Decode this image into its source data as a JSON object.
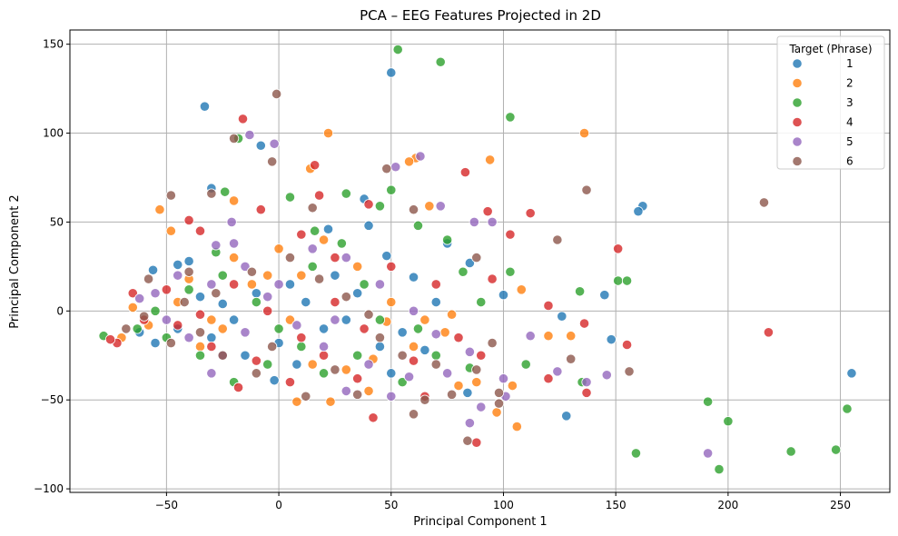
{
  "chart_data": {
    "type": "scatter",
    "title": "PCA – EEG Features Projected in 2D",
    "xlabel": "Principal Component 1",
    "ylabel": "Principal Component 2",
    "xlim": [
      -93,
      272
    ],
    "ylim": [
      -102,
      158
    ],
    "xticks": [
      -50,
      0,
      50,
      100,
      150,
      200,
      250
    ],
    "yticks": [
      -100,
      -50,
      0,
      50,
      100,
      150
    ],
    "grid": true,
    "legend": {
      "title": "Target (Phrase)",
      "position": "top-right"
    },
    "series": [
      {
        "name": "1",
        "color": "#1f77b4",
        "points": [
          [
            -33,
            115
          ],
          [
            -30,
            69
          ],
          [
            -8,
            93
          ],
          [
            50,
            134
          ],
          [
            38,
            63
          ],
          [
            22,
            46
          ],
          [
            48,
            31
          ],
          [
            40,
            48
          ],
          [
            75,
            38
          ],
          [
            85,
            27
          ],
          [
            162,
            59
          ],
          [
            160,
            56
          ],
          [
            145,
            9
          ],
          [
            148,
            -16
          ],
          [
            126,
            -3
          ],
          [
            128,
            -59
          ],
          [
            100,
            9
          ],
          [
            84,
            -46
          ],
          [
            255,
            -35
          ],
          [
            -56,
            23
          ],
          [
            -45,
            26
          ],
          [
            -40,
            28
          ],
          [
            -55,
            -18
          ],
          [
            -45,
            -10
          ],
          [
            -30,
            -15
          ],
          [
            -25,
            4
          ],
          [
            -20,
            -5
          ],
          [
            -10,
            10
          ],
          [
            0,
            -18
          ],
          [
            -2,
            -39
          ],
          [
            5,
            15
          ],
          [
            12,
            5
          ],
          [
            20,
            -10
          ],
          [
            25,
            20
          ],
          [
            30,
            -5
          ],
          [
            35,
            10
          ],
          [
            45,
            -20
          ],
          [
            50,
            -35
          ],
          [
            55,
            -12
          ],
          [
            60,
            19
          ],
          [
            65,
            -22
          ],
          [
            70,
            5
          ],
          [
            -62,
            -12
          ],
          [
            -35,
            8
          ],
          [
            -15,
            -25
          ],
          [
            8,
            -30
          ]
        ]
      },
      {
        "name": "2",
        "color": "#ff7f0e",
        "points": [
          [
            -53,
            57
          ],
          [
            -48,
            45
          ],
          [
            -20,
            62
          ],
          [
            14,
            80
          ],
          [
            22,
            100
          ],
          [
            61,
            86
          ],
          [
            58,
            84
          ],
          [
            67,
            59
          ],
          [
            94,
            85
          ],
          [
            136,
            100
          ],
          [
            108,
            12
          ],
          [
            120,
            -14
          ],
          [
            130,
            -14
          ],
          [
            104,
            -42
          ],
          [
            106,
            -65
          ],
          [
            97,
            -57
          ],
          [
            77,
            -2
          ],
          [
            74,
            -12
          ],
          [
            80,
            -42
          ],
          [
            60,
            -20
          ],
          [
            48,
            -6
          ],
          [
            42,
            -27
          ],
          [
            30,
            -33
          ],
          [
            23,
            -51
          ],
          [
            8,
            -51
          ],
          [
            15,
            -30
          ],
          [
            5,
            -5
          ],
          [
            -5,
            20
          ],
          [
            -12,
            15
          ],
          [
            -25,
            -10
          ],
          [
            -35,
            -20
          ],
          [
            -45,
            5
          ],
          [
            -58,
            -8
          ],
          [
            -65,
            2
          ],
          [
            -70,
            -15
          ],
          [
            -40,
            18
          ],
          [
            -20,
            30
          ],
          [
            0,
            35
          ],
          [
            20,
            40
          ],
          [
            35,
            25
          ],
          [
            50,
            5
          ],
          [
            65,
            -5
          ],
          [
            88,
            -40
          ],
          [
            40,
            -45
          ],
          [
            10,
            20
          ],
          [
            -30,
            -5
          ]
        ]
      },
      {
        "name": "3",
        "color": "#2ca02c",
        "points": [
          [
            53,
            147
          ],
          [
            72,
            140
          ],
          [
            103,
            109
          ],
          [
            -18,
            97
          ],
          [
            -24,
            67
          ],
          [
            -28,
            33
          ],
          [
            5,
            64
          ],
          [
            16,
            45
          ],
          [
            30,
            66
          ],
          [
            45,
            59
          ],
          [
            50,
            68
          ],
          [
            62,
            48
          ],
          [
            75,
            40
          ],
          [
            82,
            22
          ],
          [
            90,
            5
          ],
          [
            103,
            22
          ],
          [
            134,
            11
          ],
          [
            151,
            17
          ],
          [
            155,
            17
          ],
          [
            191,
            -51
          ],
          [
            200,
            -62
          ],
          [
            159,
            -80
          ],
          [
            196,
            -89
          ],
          [
            228,
            -79
          ],
          [
            248,
            -78
          ],
          [
            253,
            -55
          ],
          [
            135,
            -40
          ],
          [
            110,
            -30
          ],
          [
            85,
            -32
          ],
          [
            70,
            -25
          ],
          [
            55,
            -40
          ],
          [
            62,
            -10
          ],
          [
            45,
            -5
          ],
          [
            35,
            -25
          ],
          [
            20,
            -35
          ],
          [
            10,
            -20
          ],
          [
            -5,
            -30
          ],
          [
            -20,
            -40
          ],
          [
            -35,
            -25
          ],
          [
            -50,
            -15
          ],
          [
            -63,
            -10
          ],
          [
            -78,
            -14
          ],
          [
            -55,
            0
          ],
          [
            -40,
            12
          ],
          [
            -25,
            20
          ],
          [
            -10,
            5
          ],
          [
            0,
            -10
          ],
          [
            15,
            25
          ],
          [
            28,
            38
          ],
          [
            38,
            15
          ]
        ]
      },
      {
        "name": "4",
        "color": "#d62728",
        "points": [
          [
            -16,
            108
          ],
          [
            16,
            82
          ],
          [
            -8,
            57
          ],
          [
            -40,
            51
          ],
          [
            -35,
            45
          ],
          [
            10,
            43
          ],
          [
            18,
            65
          ],
          [
            40,
            60
          ],
          [
            83,
            78
          ],
          [
            93,
            56
          ],
          [
            103,
            43
          ],
          [
            112,
            55
          ],
          [
            95,
            18
          ],
          [
            120,
            3
          ],
          [
            136,
            -7
          ],
          [
            151,
            35
          ],
          [
            155,
            -19
          ],
          [
            137,
            -46
          ],
          [
            120,
            -38
          ],
          [
            218,
            -12
          ],
          [
            88,
            -74
          ],
          [
            65,
            -48
          ],
          [
            60,
            -28
          ],
          [
            42,
            -60
          ],
          [
            35,
            -38
          ],
          [
            20,
            -25
          ],
          [
            5,
            -40
          ],
          [
            -10,
            -28
          ],
          [
            -18,
            -43
          ],
          [
            -30,
            -20
          ],
          [
            -45,
            -8
          ],
          [
            -60,
            -5
          ],
          [
            -72,
            -18
          ],
          [
            -75,
            -16
          ],
          [
            -65,
            10
          ],
          [
            -50,
            12
          ],
          [
            -35,
            -2
          ],
          [
            -20,
            15
          ],
          [
            -5,
            0
          ],
          [
            10,
            -15
          ],
          [
            25,
            5
          ],
          [
            38,
            -10
          ],
          [
            50,
            25
          ],
          [
            70,
            15
          ],
          [
            80,
            -15
          ],
          [
            90,
            -25
          ],
          [
            25,
            30
          ]
        ]
      },
      {
        "name": "5",
        "color": "#9467bd",
        "points": [
          [
            -13,
            99
          ],
          [
            -2,
            94
          ],
          [
            -21,
            50
          ],
          [
            -28,
            37
          ],
          [
            -20,
            38
          ],
          [
            52,
            81
          ],
          [
            63,
            87
          ],
          [
            72,
            59
          ],
          [
            87,
            50
          ],
          [
            95,
            50
          ],
          [
            112,
            -14
          ],
          [
            124,
            -34
          ],
          [
            146,
            -36
          ],
          [
            137,
            -40
          ],
          [
            100,
            -38
          ],
          [
            101,
            -48
          ],
          [
            90,
            -54
          ],
          [
            85,
            -63
          ],
          [
            85,
            -23
          ],
          [
            191,
            -80
          ],
          [
            70,
            -13
          ],
          [
            58,
            -37
          ],
          [
            50,
            -48
          ],
          [
            40,
            -30
          ],
          [
            30,
            -45
          ],
          [
            20,
            -20
          ],
          [
            8,
            -8
          ],
          [
            -5,
            8
          ],
          [
            -15,
            -12
          ],
          [
            -30,
            -35
          ],
          [
            -40,
            -15
          ],
          [
            -50,
            -5
          ],
          [
            -62,
            7
          ],
          [
            -55,
            10
          ],
          [
            -45,
            20
          ],
          [
            -30,
            15
          ],
          [
            -15,
            25
          ],
          [
            0,
            15
          ],
          [
            15,
            35
          ],
          [
            30,
            30
          ],
          [
            45,
            15
          ],
          [
            60,
            0
          ],
          [
            75,
            -35
          ],
          [
            25,
            -5
          ],
          [
            -25,
            -25
          ]
        ]
      },
      {
        "name": "6",
        "color": "#8c564b",
        "points": [
          [
            -1,
            122
          ],
          [
            -3,
            84
          ],
          [
            -20,
            97
          ],
          [
            -30,
            66
          ],
          [
            -48,
            65
          ],
          [
            -58,
            18
          ],
          [
            -40,
            22
          ],
          [
            48,
            80
          ],
          [
            60,
            57
          ],
          [
            88,
            30
          ],
          [
            124,
            40
          ],
          [
            137,
            68
          ],
          [
            216,
            61
          ],
          [
            156,
            -34
          ],
          [
            130,
            -27
          ],
          [
            98,
            -52
          ],
          [
            95,
            -18
          ],
          [
            98,
            -46
          ],
          [
            88,
            -33
          ],
          [
            84,
            -73
          ],
          [
            77,
            -47
          ],
          [
            65,
            -50
          ],
          [
            60,
            -58
          ],
          [
            35,
            -47
          ],
          [
            25,
            -33
          ],
          [
            12,
            -48
          ],
          [
            -3,
            -20
          ],
          [
            -10,
            -35
          ],
          [
            -25,
            -25
          ],
          [
            -35,
            -12
          ],
          [
            -48,
            -18
          ],
          [
            -60,
            -3
          ],
          [
            -68,
            -10
          ],
          [
            -42,
            5
          ],
          [
            -28,
            10
          ],
          [
            -12,
            22
          ],
          [
            5,
            30
          ],
          [
            18,
            18
          ],
          [
            30,
            8
          ],
          [
            45,
            -15
          ],
          [
            55,
            -25
          ],
          [
            70,
            -30
          ],
          [
            15,
            58
          ],
          [
            40,
            -2
          ]
        ]
      }
    ]
  }
}
